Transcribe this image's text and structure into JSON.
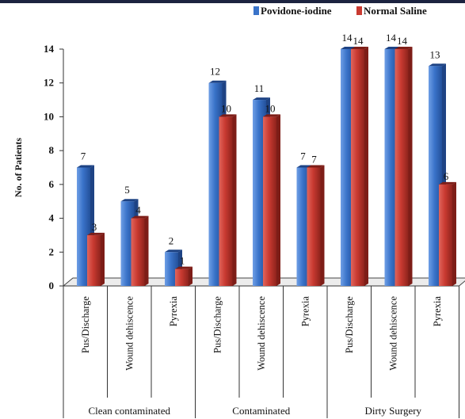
{
  "chart_data": {
    "type": "bar",
    "ylabel": "No. of Patients",
    "ylim": [
      0,
      14
    ],
    "yticks": [
      0,
      2,
      4,
      6,
      8,
      10,
      12,
      14
    ],
    "grid": false,
    "legend_position": "top-right",
    "groups": [
      "Clean contaminated",
      "Contaminated",
      "Dirty Surgery"
    ],
    "categories": [
      "Pus/Discharge",
      "Wound dehiscence",
      "Pyrexia",
      "Pus/Discharge",
      "Wound dehiscence",
      "Pyrexia",
      "Pus/Discharge",
      "Wound dehiscence",
      "Pyrexia"
    ],
    "series": [
      {
        "name": "Povidone-iodine",
        "color": "#3a73c9",
        "values": [
          7,
          5,
          2,
          12,
          11,
          7,
          14,
          14,
          13
        ]
      },
      {
        "name": "Normal Saline",
        "color": "#c93a31",
        "values": [
          3,
          4,
          1,
          10,
          10,
          7,
          14,
          14,
          6
        ]
      }
    ]
  }
}
